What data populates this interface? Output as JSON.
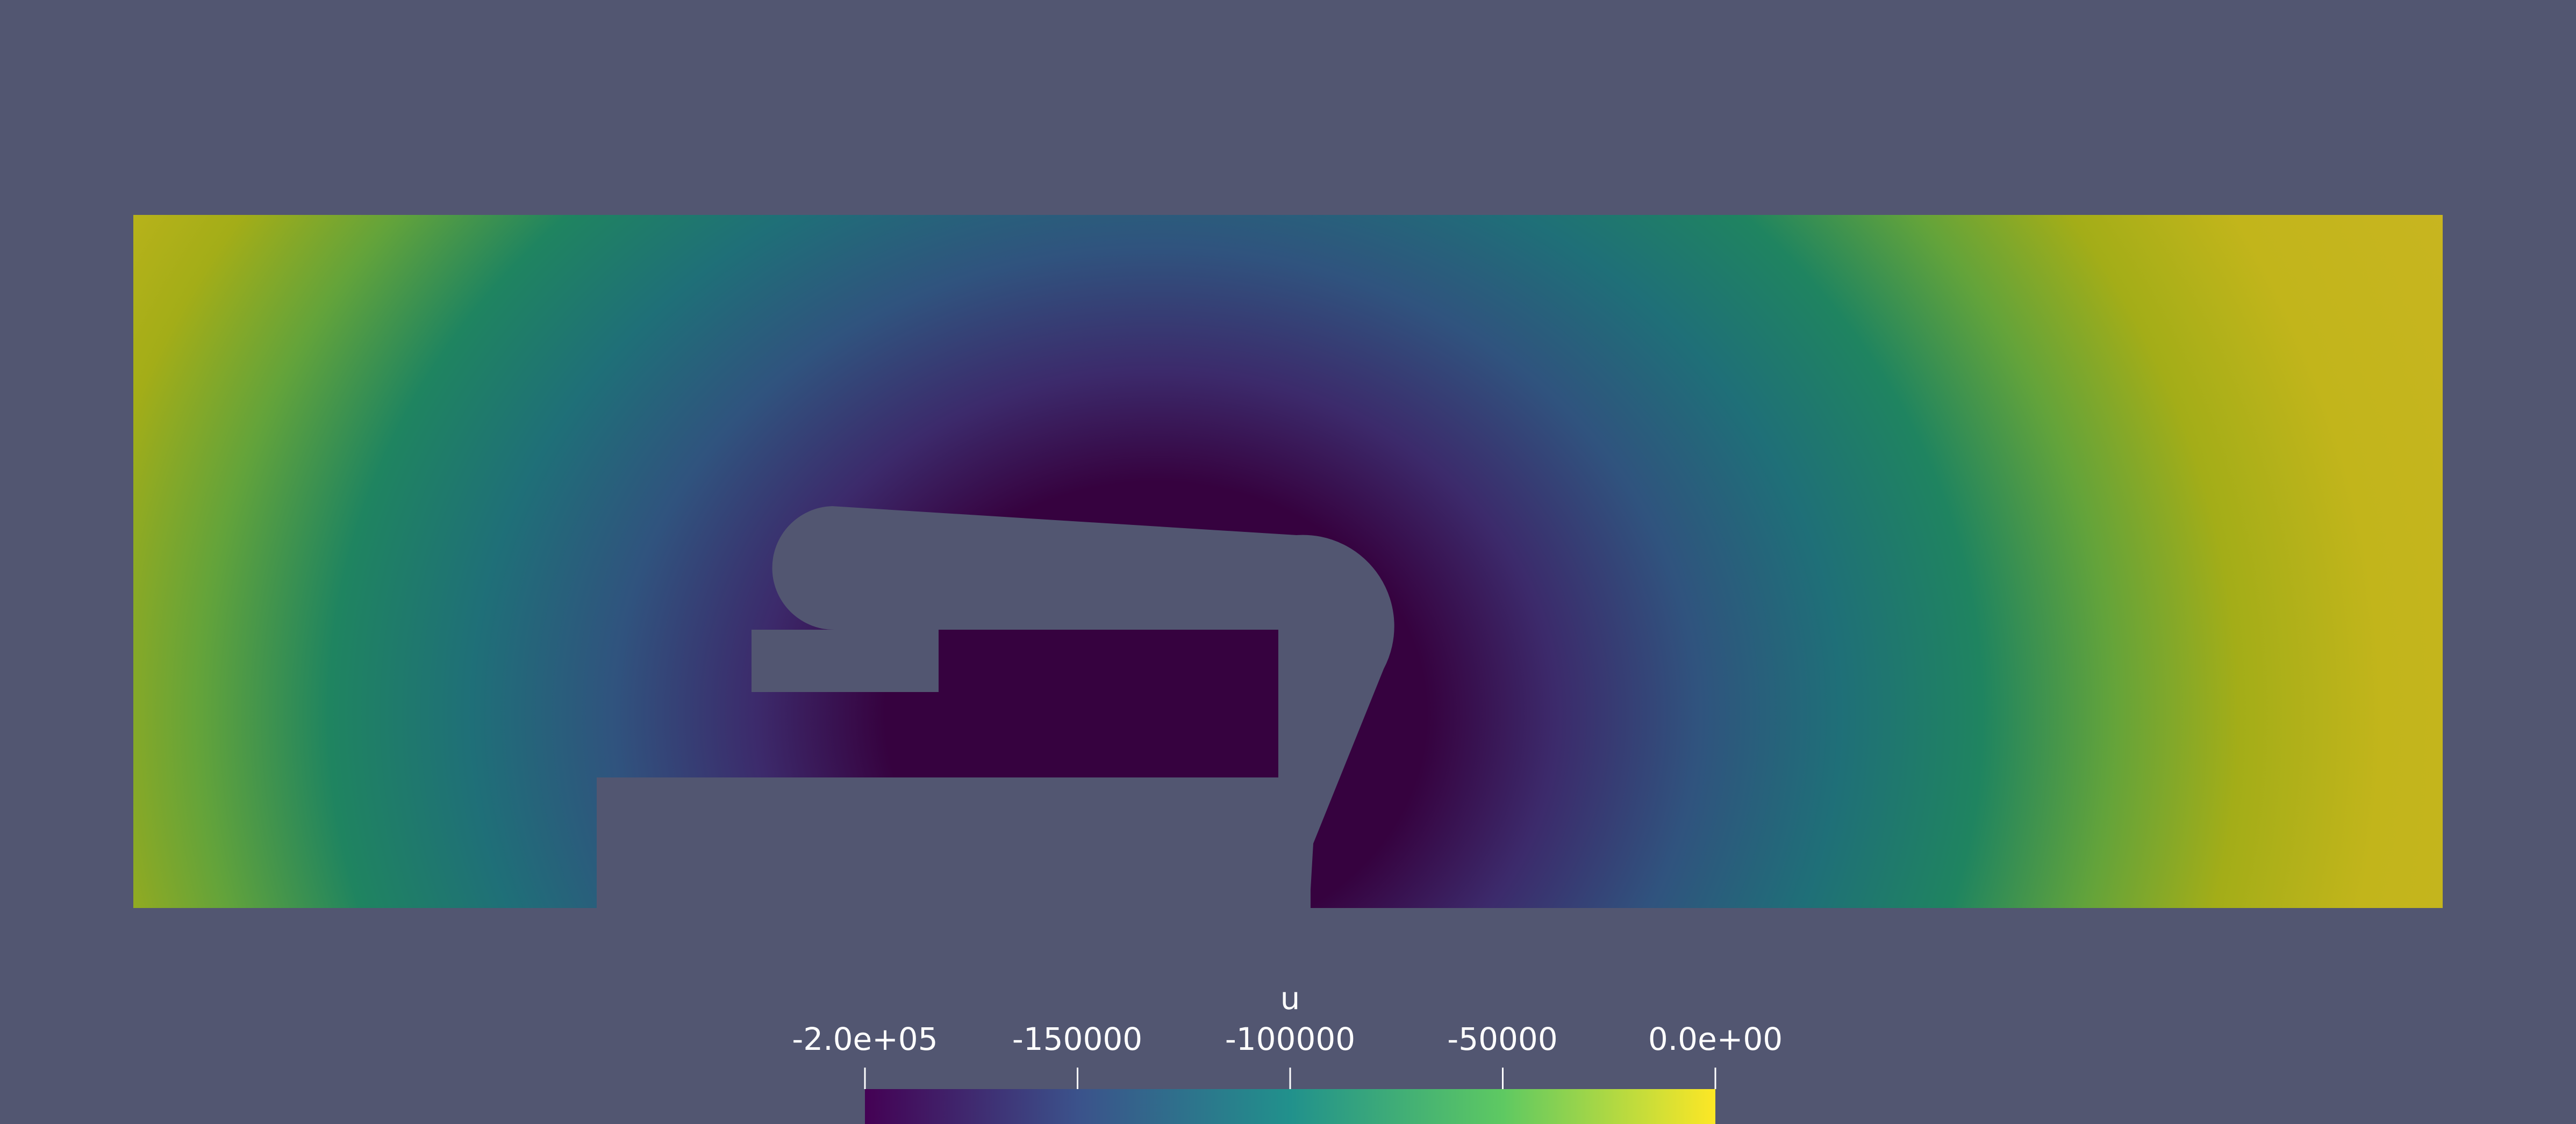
{
  "render_view": {
    "background_color": "#525671",
    "field_name": "u",
    "colormap": "viridis",
    "colormap_stops": [
      "#440154",
      "#3b528b",
      "#21918c",
      "#5ec962",
      "#fde725"
    ],
    "color_range": [
      -200000,
      0
    ],
    "colorbar": {
      "title": "u",
      "tick_labels": [
        "-2.0e+05",
        "-150000",
        "-100000",
        "-50000",
        "0.0e+00"
      ],
      "tick_values": [
        -200000,
        -150000,
        -100000,
        -50000,
        0
      ]
    }
  }
}
